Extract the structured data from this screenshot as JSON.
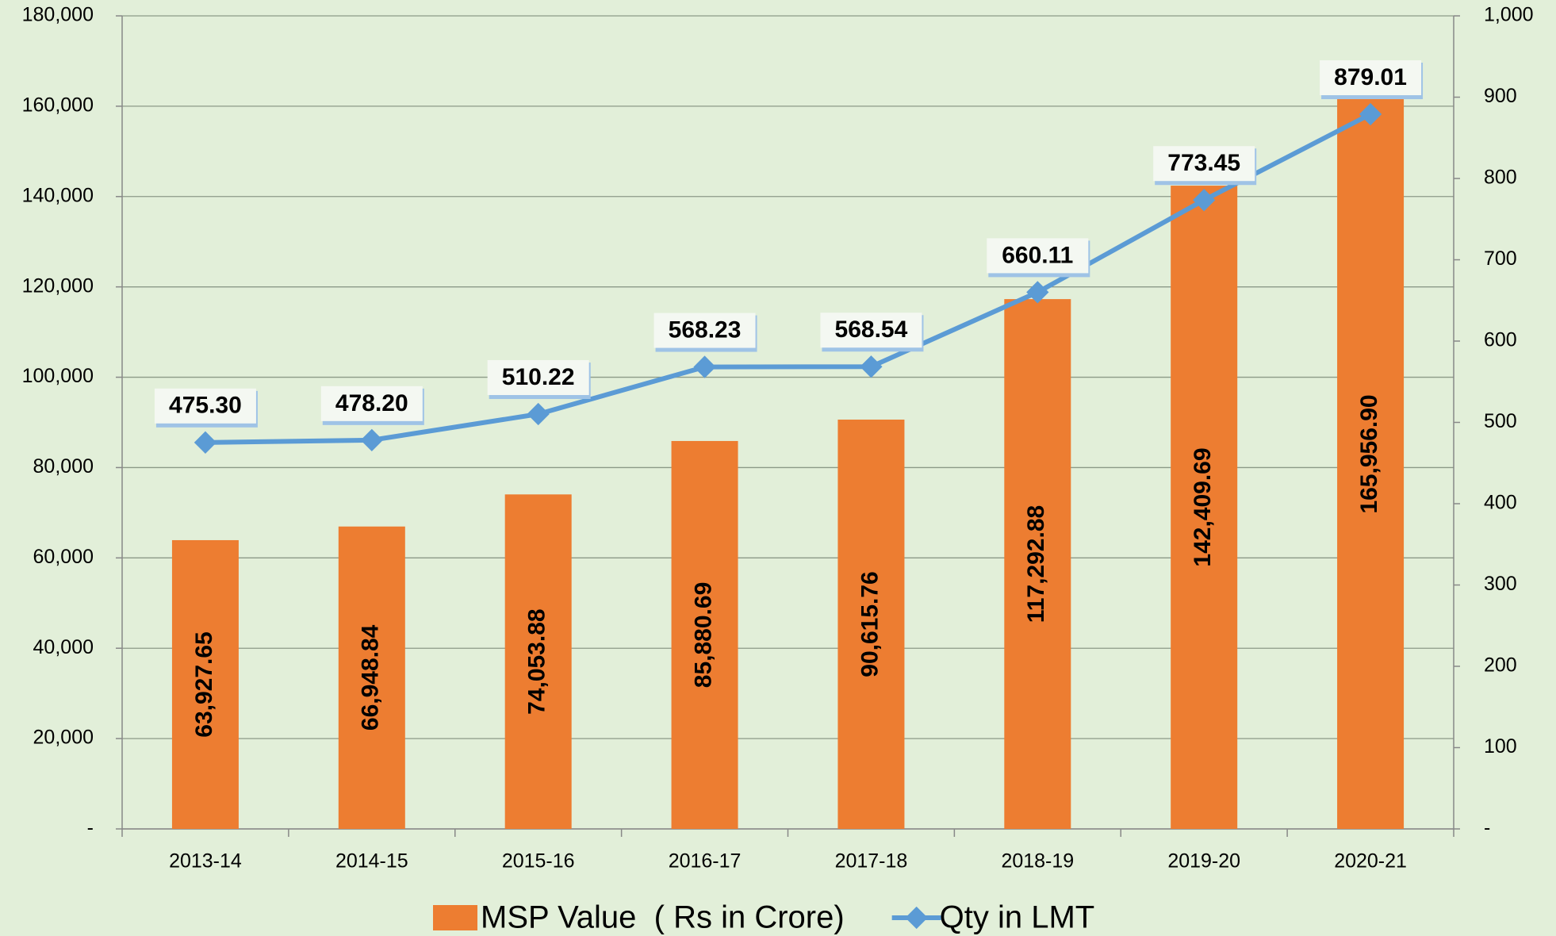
{
  "chart_data": {
    "type": "bar",
    "categories": [
      "2013-14",
      "2014-15",
      "2015-16",
      "2016-17",
      "2017-18",
      "2018-19",
      "2019-20",
      "2020-21"
    ],
    "series": [
      {
        "name": "MSP Value  ( Rs in Crore)",
        "type": "bar",
        "color": "#ed7d31",
        "values": [
          63927.65,
          66948.84,
          74053.88,
          85880.69,
          90615.76,
          117292.88,
          142409.69,
          165956.9
        ],
        "value_labels": [
          "63,927.65",
          "66,948.84",
          "74,053.88",
          "85,880.69",
          "90,615.76",
          "117,292.88",
          "142,409.69",
          "165,956.90"
        ]
      },
      {
        "name": "Qty in LMT",
        "type": "line",
        "axis": "y2",
        "color": "#5b9bd5",
        "values": [
          475.3,
          478.2,
          510.22,
          568.23,
          568.54,
          660.11,
          773.45,
          879.01
        ],
        "value_labels": [
          "475.30",
          "478.20",
          "510.22",
          "568.23",
          "568.54",
          "660.11",
          "773.45",
          "879.01"
        ]
      }
    ],
    "ylim": [
      0,
      180000
    ],
    "yticks": [
      {
        "value": 0,
        "label": "-"
      },
      {
        "value": 20000,
        "label": "20,000"
      },
      {
        "value": 40000,
        "label": "40,000"
      },
      {
        "value": 60000,
        "label": "60,000"
      },
      {
        "value": 80000,
        "label": "80,000"
      },
      {
        "value": 100000,
        "label": "100,000"
      },
      {
        "value": 120000,
        "label": "120,000"
      },
      {
        "value": 140000,
        "label": "140,000"
      },
      {
        "value": 160000,
        "label": "160,000"
      },
      {
        "value": 180000,
        "label": "180,000"
      }
    ],
    "y2lim": [
      0,
      1000
    ],
    "y2ticks": [
      {
        "value": 0,
        "label": "-"
      },
      100,
      200,
      300,
      400,
      500,
      600,
      700,
      800,
      900,
      {
        "value": 1000,
        "label": "1,000"
      }
    ],
    "grid": true,
    "legend": "bottom"
  }
}
